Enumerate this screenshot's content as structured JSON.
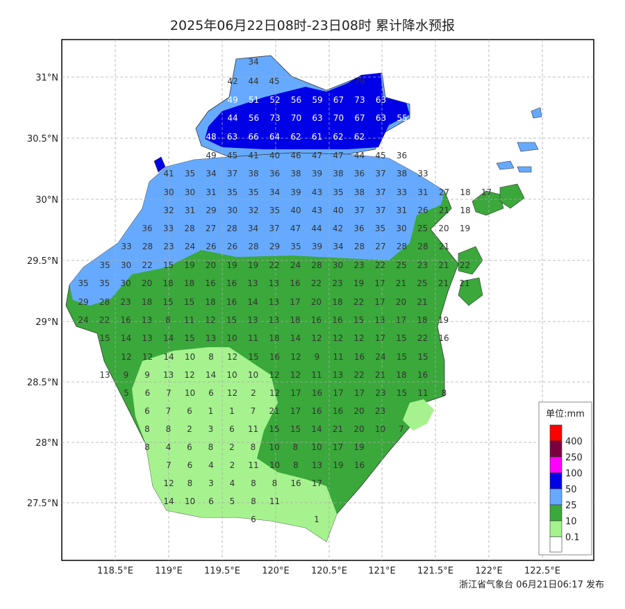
{
  "title": "2025年06月22日08时-23日08时 累计降水预报",
  "footer": "浙江省气象台 06月21日06:17 发布",
  "lat_ticks": [
    "31°N",
    "30.5°N",
    "30°N",
    "29.5°N",
    "29°N",
    "28.5°N",
    "28°N",
    "27.5°N"
  ],
  "lon_ticks": [
    "118.5°E",
    "119°E",
    "119.5°E",
    "120°E",
    "120.5°E",
    "121°E",
    "121.5°E",
    "122°E",
    "122.5°E"
  ],
  "legend": {
    "title": "单位:mm",
    "colors": {
      "c400": "#ff0000",
      "c250": "#7a0040",
      "c100": "#ff00ff",
      "c50": "#0000e6",
      "c25": "#66aaff",
      "c10": "#3aa83a",
      "c01": "#a6f28f",
      "c0": "#ffffff"
    },
    "labels": [
      "400",
      "250",
      "100",
      "50",
      "25",
      "10",
      "0.1"
    ]
  },
  "values": [
    [
      "34"
    ],
    [
      "42",
      "44",
      "45",
      "79"
    ],
    [
      "49",
      "51",
      "52",
      "56",
      "59",
      "67",
      "73",
      "63"
    ],
    [
      "44",
      "56",
      "73",
      "70",
      "63",
      "70",
      "67",
      "63",
      "55"
    ],
    [
      "48",
      "63",
      "66",
      "64",
      "62",
      "61",
      "62",
      "62"
    ],
    [
      "49",
      "45",
      "41",
      "40",
      "46",
      "47",
      "47",
      "44",
      "45",
      "36"
    ],
    [
      "41",
      "35",
      "34",
      "37",
      "38",
      "36",
      "38",
      "39",
      "38",
      "36",
      "37",
      "38",
      "33"
    ],
    [
      "30",
      "30",
      "31",
      "35",
      "35",
      "34",
      "39",
      "43",
      "35",
      "38",
      "37",
      "33",
      "31",
      "27",
      "18",
      "17"
    ],
    [
      "32",
      "31",
      "29",
      "30",
      "32",
      "35",
      "40",
      "43",
      "40",
      "37",
      "37",
      "31",
      "26",
      "21",
      "18"
    ],
    [
      "36",
      "33",
      "28",
      "27",
      "28",
      "34",
      "37",
      "47",
      "44",
      "42",
      "36",
      "35",
      "30",
      "25",
      "20",
      "19"
    ],
    [
      "33",
      "28",
      "23",
      "24",
      "26",
      "26",
      "28",
      "29",
      "35",
      "39",
      "34",
      "28",
      "27",
      "28",
      "28",
      "21"
    ],
    [
      "35",
      "30",
      "22",
      "15",
      "19",
      "20",
      "19",
      "19",
      "22",
      "24",
      "28",
      "30",
      "23",
      "22",
      "25",
      "23",
      "21",
      "22"
    ],
    [
      "35",
      "35",
      "30",
      "20",
      "18",
      "18",
      "16",
      "16",
      "13",
      "13",
      "16",
      "22",
      "23",
      "19",
      "17",
      "21",
      "25",
      "21",
      "21"
    ],
    [
      "29",
      "28",
      "23",
      "18",
      "15",
      "15",
      "18",
      "16",
      "14",
      "13",
      "17",
      "20",
      "18",
      "22",
      "17",
      "20",
      "21"
    ],
    [
      "24",
      "22",
      "16",
      "13",
      "8",
      "11",
      "12",
      "15",
      "13",
      "13",
      "18",
      "16",
      "16",
      "15",
      "13",
      "17",
      "18",
      "19"
    ],
    [
      "15",
      "14",
      "13",
      "14",
      "15",
      "13",
      "10",
      "11",
      "18",
      "14",
      "12",
      "12",
      "12",
      "17",
      "15",
      "22",
      "16"
    ],
    [
      "12",
      "12",
      "14",
      "10",
      "8",
      "12",
      "15",
      "16",
      "12",
      "9",
      "11",
      "16",
      "24",
      "15",
      "15"
    ],
    [
      "13",
      "9",
      "9",
      "13",
      "12",
      "14",
      "10",
      "10",
      "12",
      "12",
      "11",
      "13",
      "22",
      "21",
      "18",
      "16"
    ],
    [
      "5",
      "6",
      "7",
      "10",
      "6",
      "12",
      "2",
      "12",
      "17",
      "16",
      "17",
      "17",
      "23",
      "15",
      "11",
      "8"
    ],
    [
      "6",
      "7",
      "6",
      "1",
      "1",
      "7",
      "21",
      "17",
      "16",
      "16",
      "20",
      "23"
    ],
    [
      "8",
      "8",
      "2",
      "3",
      "6",
      "11",
      "15",
      "15",
      "14",
      "21",
      "20",
      "10",
      "7"
    ],
    [
      "8",
      "4",
      "6",
      "8",
      "2",
      "8",
      "10",
      "8",
      "10",
      "17",
      "19"
    ],
    [
      "7",
      "6",
      "4",
      "2",
      "11",
      "10",
      "8",
      "13",
      "19",
      "16"
    ],
    [
      "12",
      "8",
      "3",
      "4",
      "8",
      "8",
      "16",
      "17"
    ],
    [
      "14",
      "10",
      "6",
      "5",
      "8",
      "11"
    ],
    [
      "6",
      "1"
    ]
  ]
}
